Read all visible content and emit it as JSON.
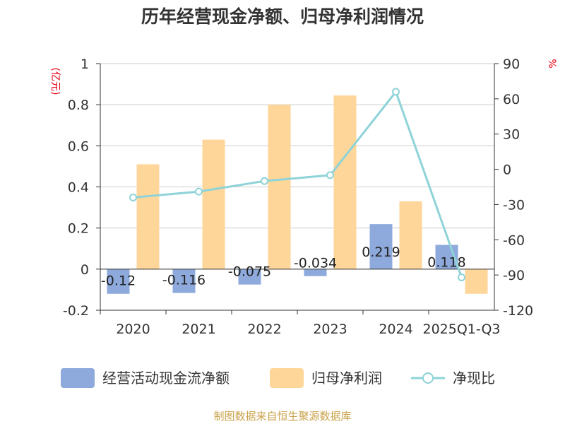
{
  "title": "历年经营现金净额、归母净利润情况",
  "source": "制图数据来自恒生聚源数据库",
  "colors": {
    "cash_flow": "#8eaadc",
    "net_profit": "#ffd699",
    "ratio": "#8ed3d8",
    "grid": "#cccccc",
    "axis": "#333333",
    "unit": "#e60012"
  },
  "chart_data": {
    "type": "bar",
    "categories": [
      "2020",
      "2021",
      "2022",
      "2023",
      "2024",
      "2025Q1-Q3"
    ],
    "left_axis": {
      "unit": "(亿元)",
      "ylim": [
        -0.2,
        1
      ],
      "ticks": [
        "1",
        "0.8",
        "0.6",
        "0.4",
        "0.2",
        "0",
        "-0.2"
      ],
      "tick_values": [
        1,
        0.8,
        0.6,
        0.4,
        0.2,
        0,
        -0.2
      ]
    },
    "right_axis": {
      "unit": "%",
      "ylim": [
        -120,
        90
      ],
      "ticks": [
        "90",
        "60",
        "30",
        "0",
        "-30",
        "-60",
        "-90",
        "-120"
      ],
      "tick_values": [
        90,
        60,
        30,
        0,
        -30,
        -60,
        -90,
        -120
      ]
    },
    "series": [
      {
        "name": "经营活动现金流净额",
        "type": "bar",
        "axis": "left",
        "values": [
          -0.12,
          -0.116,
          -0.075,
          -0.034,
          0.219,
          0.118
        ],
        "labels": [
          "-0.12",
          "-0.116",
          "-0.075",
          "-0.034",
          "0.219",
          "0.118"
        ]
      },
      {
        "name": "归母净利润",
        "type": "bar",
        "axis": "left",
        "values": [
          0.51,
          0.63,
          0.8,
          0.845,
          0.33,
          -0.12
        ]
      },
      {
        "name": "净现比",
        "type": "line",
        "axis": "right",
        "values": [
          -24,
          -19,
          -10,
          -5,
          66,
          -92
        ]
      }
    ]
  }
}
